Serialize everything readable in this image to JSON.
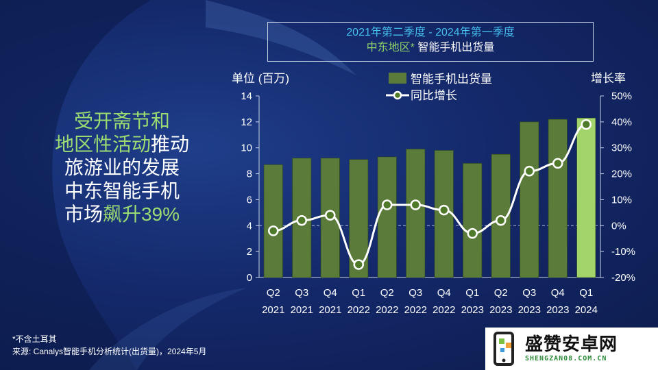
{
  "title_box": {
    "line1": "2021年第二季度 - 2024年第一季度",
    "line2_highlight": "中东地区*",
    "line2_rest": " 智能手机出货量"
  },
  "headline": {
    "l1_green": "受开斋节和",
    "l2_green": "地区性活动",
    "l2_white": "推动",
    "l3": "旅游业的发展",
    "l4": "中东智能手机",
    "l5_white": "市场",
    "l5_green": "飙升39%"
  },
  "footnote": {
    "line1": "*不含土耳其",
    "line2": "来源: Canalys智能手机分析统计(出货量)，2024年5月"
  },
  "logo": {
    "text": "盛赞安卓网",
    "url": "SHENGZAN08.COM.CN"
  },
  "colors": {
    "bar": "#5b7b3a",
    "bar_highlight": "#a3d36b",
    "line": "#ffffff",
    "marker_fill": "#4f7a2a"
  },
  "chart_data": {
    "type": "bar",
    "categories": [
      [
        "Q2",
        "2021"
      ],
      [
        "Q3",
        "2021"
      ],
      [
        "Q4",
        "2021"
      ],
      [
        "Q1",
        "2022"
      ],
      [
        "Q2",
        "2022"
      ],
      [
        "Q3",
        "2022"
      ],
      [
        "Q4",
        "2022"
      ],
      [
        "Q1",
        "2023"
      ],
      [
        "Q2",
        "2023"
      ],
      [
        "Q3",
        "2023"
      ],
      [
        "Q4",
        "2023"
      ],
      [
        "Q1",
        "2024"
      ]
    ],
    "series": [
      {
        "name": "智能手机出货量",
        "type": "bar",
        "axis": "left",
        "values": [
          8.7,
          9.2,
          9.2,
          9.1,
          9.3,
          9.9,
          9.8,
          8.8,
          9.5,
          12.0,
          12.2,
          12.3
        ]
      },
      {
        "name": "同比增长",
        "type": "line",
        "axis": "right",
        "values": [
          -2,
          2,
          4,
          -15,
          8,
          8,
          6,
          -3,
          2,
          21,
          24,
          39
        ]
      }
    ],
    "ylabel_left": "单位 (百万)",
    "ylabel_right": "增长率",
    "ylim_left": [
      0,
      14
    ],
    "ylim_right": [
      -20,
      50
    ],
    "yticks_left": [
      "0",
      "2",
      "4",
      "6",
      "8",
      "10",
      "12",
      "14"
    ],
    "yticks_right": [
      "-20%",
      "-10%",
      "0%",
      "10%",
      "20%",
      "30%",
      "40%",
      "50%"
    ],
    "legend": [
      "智能手机出货量",
      "同比增长"
    ]
  }
}
